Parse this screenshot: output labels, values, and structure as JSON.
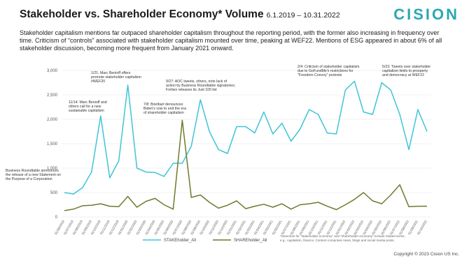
{
  "brand": "CISION",
  "description": "Stakeholder capitalism mentions far outpaced shareholder capitalism throughout the reporting period, with the former also increasing in frequency over time. Criticism of “controls” associated with stakeholder capitalism mounted over time, peaking at WEF22. Mentions of ESG appeared in about 6% of all stakeholder discussion, becoming more frequent from January 2021 onward.",
  "footnote": [
    "*Searches for \"stakeholder economy\" and \"shareholder economy\" include related terms,",
    "e.g., capitalism, finance. Content comprises news, blogs and social media posts."
  ],
  "copyright": "Copyright © 2023 Cision US Inc.",
  "chart_data": {
    "type": "line",
    "title": "Stakeholder vs. Shareholder Economy* Volume",
    "subtitle": "6.1.2019 – 10.31.2022",
    "categories": [
      "01/06/2019",
      "01/07/2019",
      "01/08/2019",
      "01/09/2019",
      "01/10/2019",
      "01/11/2019",
      "01/12/2019",
      "01/01/2020",
      "01/02/2020",
      "01/03/2020",
      "01/04/2020",
      "01/05/2020",
      "01/06/2020",
      "01/07/2020",
      "01/08/2020",
      "01/09/2020",
      "01/10/2020",
      "01/11/2020",
      "01/12/2020",
      "01/01/2021",
      "01/02/2021",
      "01/03/2021",
      "01/04/2021",
      "01/05/2021",
      "01/06/2021",
      "01/07/2021",
      "01/08/2021",
      "01/09/2021",
      "01/10/2021",
      "01/11/2021",
      "01/12/2021",
      "01/01/2022",
      "01/02/2022",
      "01/03/2022",
      "01/04/2022",
      "01/05/2022",
      "01/06/2022",
      "01/07/2022",
      "01/08/2022",
      "01/09/2022",
      "01/10/2022"
    ],
    "series": [
      {
        "name": "STAKEholder_All",
        "color": "#3fc4d6",
        "values": [
          500,
          470,
          600,
          920,
          2070,
          800,
          1150,
          2700,
          1000,
          920,
          910,
          830,
          1100,
          1100,
          1450,
          2400,
          1750,
          1380,
          1300,
          1850,
          1850,
          1720,
          2150,
          1700,
          1920,
          1550,
          1800,
          2200,
          2100,
          1720,
          1700,
          2600,
          2780,
          2150,
          2100,
          2750,
          2600,
          2100,
          1380,
          2200,
          1750
        ]
      },
      {
        "name": "SHAREholder_All",
        "color": "#6f7a2c",
        "values": [
          130,
          160,
          230,
          240,
          270,
          220,
          210,
          420,
          200,
          320,
          380,
          250,
          160,
          1980,
          400,
          450,
          300,
          180,
          240,
          330,
          170,
          220,
          260,
          200,
          270,
          160,
          250,
          270,
          300,
          220,
          150,
          250,
          360,
          500,
          330,
          270,
          450,
          660,
          210,
          220,
          220
        ]
      }
    ],
    "ylim": [
      0,
      3000
    ],
    "yticks": [
      0,
      500,
      {
        "value": 1000,
        "label": "1,000"
      },
      {
        "value": 1500,
        "label": "1,500"
      },
      {
        "value": 2000,
        "label": "2,000"
      },
      {
        "value": 2500,
        "label": "2,500"
      },
      {
        "value": 3000,
        "label": "3,000"
      }
    ],
    "grid": true,
    "annotations": [
      {
        "lines": [
          "Business Roundtable announces",
          "the release of a new Statement on",
          "the Purpose of a Corporation"
        ]
      },
      {
        "lines": [
          "11/14: Marc Benioff and",
          "others call for a new",
          "sustainable capitalism"
        ]
      },
      {
        "lines": [
          "1/21: Marc Benioff offers",
          "promote stakeholder capitalism",
          "#WEF20"
        ]
      },
      {
        "lines": [
          "9/27: AOC tweets, others, note lack of",
          "action by Business Roundtable signatories;",
          "Forbes releases its Just 100 list"
        ]
      },
      {
        "lines": [
          "7/8: Brietbart denounces",
          "Biden's vow to end the era",
          "of shareholder capitalism"
        ]
      },
      {
        "lines": [
          "2/4: Criticism of stakeholder capitalism",
          "due to GoFundMe's restrictions for",
          "\"Freedom Convoy\" protests"
        ]
      },
      {
        "lines": [
          "5/23: Tweets over stakeholder",
          "capitalism limits to prosperty",
          "and democracy at WEF22"
        ]
      }
    ]
  }
}
